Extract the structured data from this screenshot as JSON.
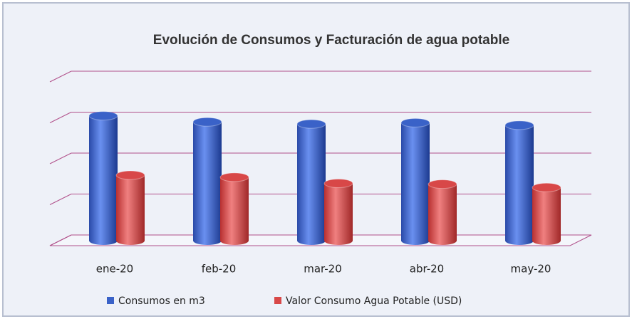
{
  "chart_data": {
    "type": "bar3d",
    "title": "Evolución de Consumos y Facturación de agua potable",
    "categories": [
      "ene-20",
      "feb-20",
      "mar-20",
      "abr-20",
      "may-20"
    ],
    "series": [
      {
        "name": "Consumos en m3",
        "color": "#3a62c8",
        "values": [
          3.05,
          2.9,
          2.85,
          2.88,
          2.82
        ]
      },
      {
        "name": "Valor Consumo Agua Potable (USD)",
        "color": "#d84848",
        "values": [
          1.6,
          1.55,
          1.4,
          1.38,
          1.3
        ]
      }
    ],
    "ylim": [
      0,
      4
    ],
    "yticks": [
      0,
      1,
      2,
      3,
      4
    ],
    "grid": true,
    "legend": "bottom"
  }
}
